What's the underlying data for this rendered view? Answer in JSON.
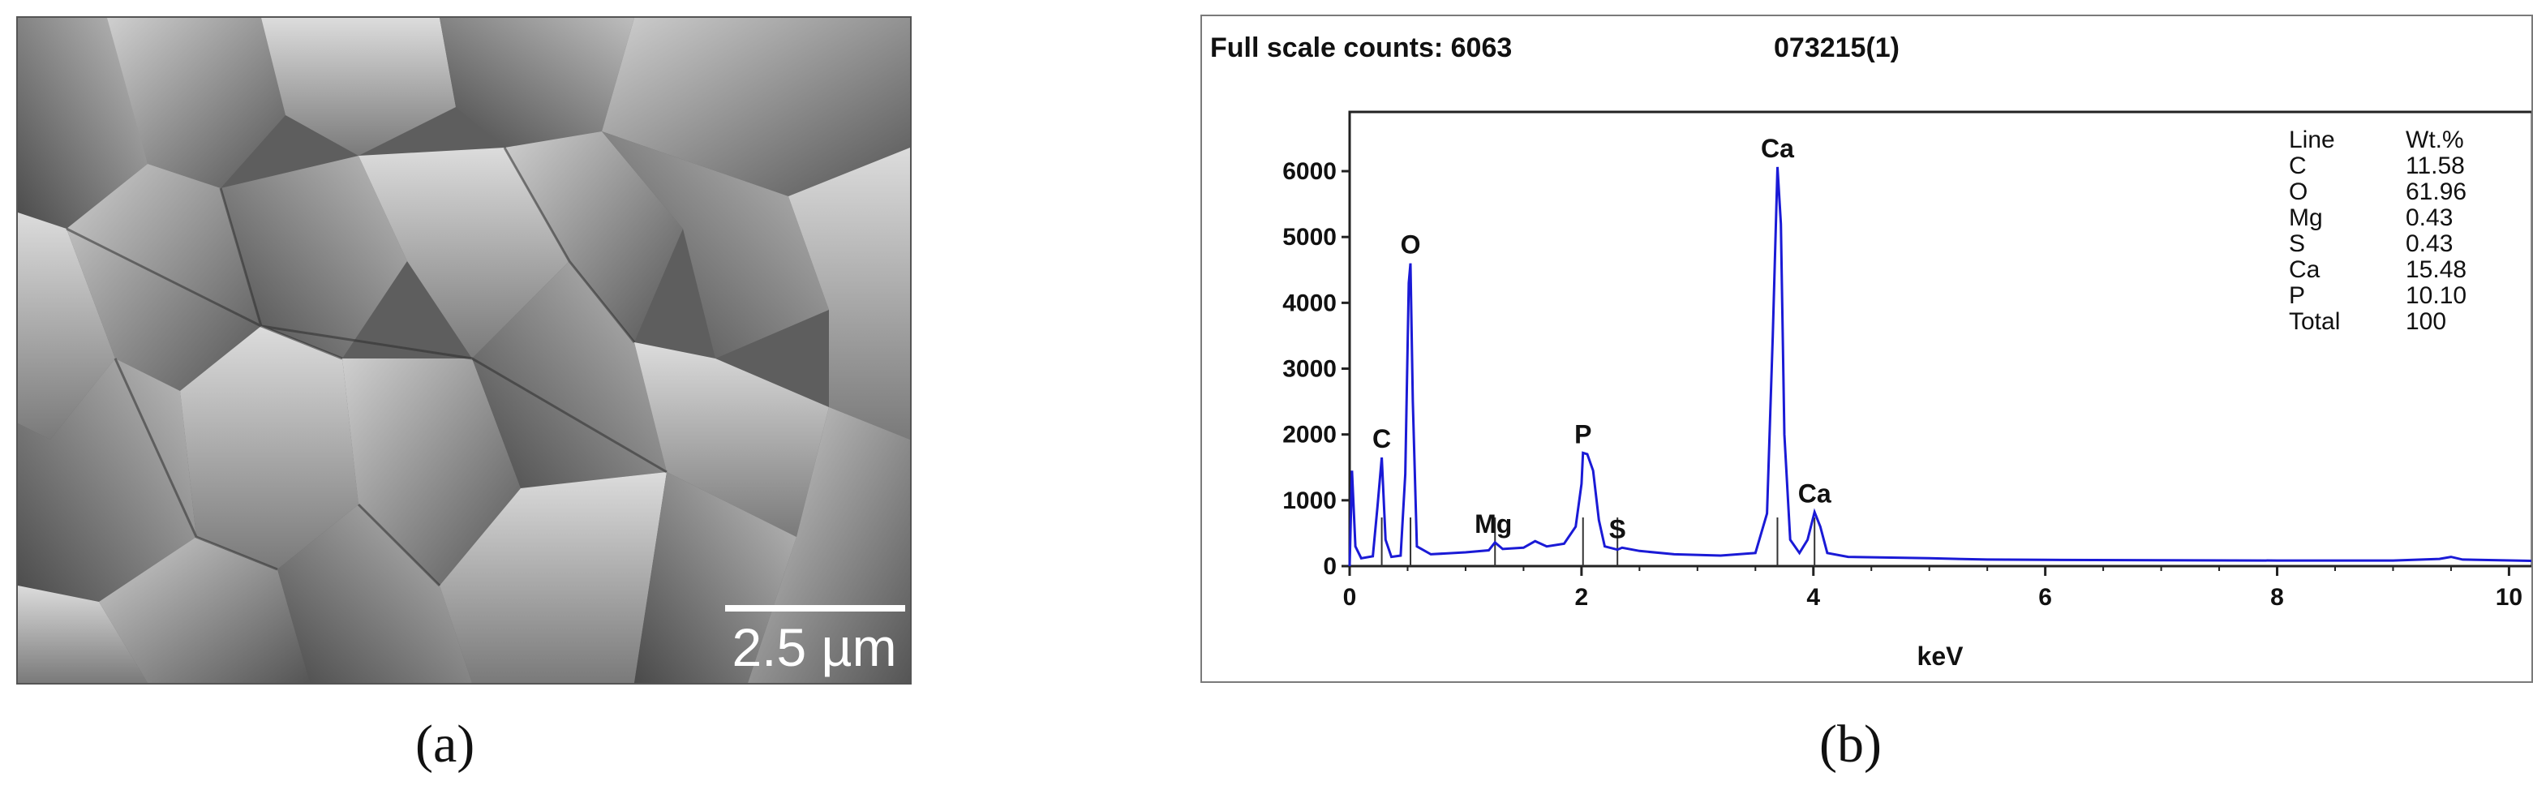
{
  "panels": {
    "a": {
      "label": "(a)",
      "scale_bar": "2.5 µm"
    },
    "b": {
      "label": "(b)",
      "header_left": "Full scale counts: 6063",
      "header_right": "073215(1)"
    }
  },
  "chart_data": {
    "type": "line",
    "title": "",
    "xlabel": "keV",
    "ylabel": "",
    "xlim": [
      0,
      10.2
    ],
    "ylim": [
      0,
      6900
    ],
    "x_ticks": [
      0,
      2,
      4,
      6,
      8,
      10
    ],
    "y_ticks": [
      0,
      1000,
      2000,
      3000,
      4000,
      5000,
      6000
    ],
    "grid": false,
    "line_color": "#1a1ad6",
    "series": [
      {
        "values": [
          [
            0.0,
            0
          ],
          [
            0.02,
            1450
          ],
          [
            0.05,
            300
          ],
          [
            0.1,
            120
          ],
          [
            0.2,
            150
          ],
          [
            0.24,
            900
          ],
          [
            0.277,
            1650
          ],
          [
            0.31,
            400
          ],
          [
            0.36,
            140
          ],
          [
            0.44,
            160
          ],
          [
            0.48,
            1400
          ],
          [
            0.51,
            4300
          ],
          [
            0.525,
            4600
          ],
          [
            0.545,
            2500
          ],
          [
            0.58,
            300
          ],
          [
            0.7,
            180
          ],
          [
            1.0,
            210
          ],
          [
            1.2,
            240
          ],
          [
            1.254,
            360
          ],
          [
            1.32,
            260
          ],
          [
            1.5,
            280
          ],
          [
            1.6,
            380
          ],
          [
            1.7,
            300
          ],
          [
            1.85,
            340
          ],
          [
            1.95,
            600
          ],
          [
            2.0,
            1250
          ],
          [
            2.013,
            1720
          ],
          [
            2.05,
            1700
          ],
          [
            2.1,
            1450
          ],
          [
            2.15,
            700
          ],
          [
            2.2,
            300
          ],
          [
            2.31,
            250
          ],
          [
            2.35,
            280
          ],
          [
            2.5,
            230
          ],
          [
            2.8,
            180
          ],
          [
            3.2,
            160
          ],
          [
            3.5,
            200
          ],
          [
            3.6,
            800
          ],
          [
            3.65,
            3500
          ],
          [
            3.69,
            6063
          ],
          [
            3.72,
            5200
          ],
          [
            3.75,
            2000
          ],
          [
            3.8,
            400
          ],
          [
            3.88,
            200
          ],
          [
            3.95,
            400
          ],
          [
            4.01,
            820
          ],
          [
            4.06,
            600
          ],
          [
            4.12,
            200
          ],
          [
            4.3,
            140
          ],
          [
            5.0,
            120
          ],
          [
            5.5,
            100
          ],
          [
            6.0,
            95
          ],
          [
            7.0,
            90
          ],
          [
            8.0,
            85
          ],
          [
            9.0,
            85
          ],
          [
            9.4,
            110
          ],
          [
            9.5,
            140
          ],
          [
            9.6,
            100
          ],
          [
            10.2,
            80
          ]
        ]
      }
    ],
    "peak_labels": [
      {
        "text": "C",
        "x": 0.277,
        "y": 1650
      },
      {
        "text": "O",
        "x": 0.525,
        "y": 4600
      },
      {
        "text": "Mg",
        "x": 1.254,
        "y": 360
      },
      {
        "text": "P",
        "x": 2.013,
        "y": 1720
      },
      {
        "text": "S",
        "x": 2.31,
        "y": 280
      },
      {
        "text": "Ca",
        "x": 3.69,
        "y": 6063
      },
      {
        "text": "Ca",
        "x": 4.01,
        "y": 820
      }
    ],
    "marker_lines": [
      0.277,
      0.525,
      1.254,
      2.013,
      2.31,
      3.69,
      4.01
    ],
    "table": {
      "headers": [
        "Line",
        "Wt.%"
      ],
      "rows": [
        [
          "C",
          "11.58"
        ],
        [
          "O",
          "61.96"
        ],
        [
          "Mg",
          "0.43"
        ],
        [
          "S",
          "0.43"
        ],
        [
          "Ca",
          "15.48"
        ],
        [
          "P",
          "10.10"
        ],
        [
          "Total",
          "100"
        ]
      ]
    }
  }
}
